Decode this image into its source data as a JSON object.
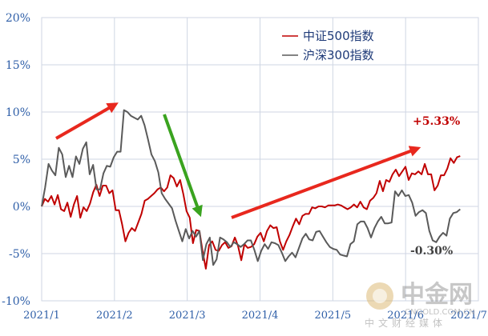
{
  "chart_data": {
    "type": "line",
    "ylim": [
      -10,
      20
    ],
    "y_ticks": [
      "20%",
      "15%",
      "10%",
      "5%",
      "0%",
      "-5%",
      "-10%"
    ],
    "y_tick_values": [
      20,
      15,
      10,
      5,
      0,
      -5,
      -10
    ],
    "x_ticks": [
      "2021/1",
      "2021/2",
      "2021/3",
      "2021/4",
      "2021/5",
      "2021/6",
      "2021/7"
    ],
    "grid": true,
    "legend_position": "top-right",
    "series": [
      {
        "name": "中证500指数",
        "color": "#c00000",
        "values": [
          0.0,
          0.8,
          0.5,
          1.1,
          0.2,
          1.2,
          -0.3,
          -0.5,
          0.4,
          -1.1,
          0.2,
          1.1,
          -1.2,
          -0.1,
          -0.5,
          0.3,
          1.5,
          2.3,
          1.1,
          2.2,
          2.2,
          1.4,
          1.7,
          -0.4,
          -0.4,
          -1.9,
          -3.7,
          -2.8,
          -2.3,
          -2.6,
          -1.7,
          -0.8,
          0.6,
          0.8,
          1.1,
          1.4,
          1.8,
          2.0,
          1.6,
          2.0,
          3.3,
          3.0,
          2.1,
          2.8,
          1.3,
          -0.5,
          -1.2,
          -3.9,
          -2.5,
          -2.6,
          -4.8,
          -6.6,
          -4.1,
          -3.7,
          -4.6,
          -4.7,
          -4.1,
          -3.8,
          -4.4,
          -4.2,
          -3.3,
          -4.2,
          -5.7,
          -4.0,
          -4.4,
          -4.3,
          -4.0,
          -3.2,
          -2.8,
          -3.7,
          -2.6,
          -2.0,
          -2.3,
          -2.2,
          -3.7,
          -4.6,
          -3.7,
          -3.0,
          -2.1,
          -1.3,
          -1.9,
          -1.0,
          -0.8,
          -0.8,
          -0.1,
          -0.2,
          0.0,
          0.0,
          -0.1,
          0.1,
          0.1,
          0.1,
          0.2,
          0.1,
          -0.1,
          -0.3,
          -0.1,
          0.2,
          -0.1,
          0.5,
          -0.1,
          -0.3,
          0.6,
          0.9,
          1.4,
          2.7,
          1.6,
          2.8,
          2.6,
          3.4,
          3.9,
          3.2,
          3.7,
          4.2,
          2.8,
          3.5,
          3.4,
          3.7,
          3.4,
          4.5,
          3.4,
          3.4,
          1.7,
          2.2,
          3.3,
          3.3,
          4.0,
          5.1,
          4.6,
          5.2,
          5.33
        ]
      },
      {
        "name": "沪深300指数",
        "color": "#5a5a5a",
        "values": [
          0.0,
          2.0,
          4.5,
          3.8,
          3.3,
          6.2,
          5.5,
          3.1,
          4.3,
          3.1,
          5.3,
          4.5,
          6.1,
          6.8,
          3.4,
          4.4,
          1.8,
          1.8,
          3.5,
          4.3,
          4.2,
          5.2,
          5.8,
          5.8,
          10.2,
          10.0,
          9.6,
          9.4,
          9.2,
          9.6,
          8.6,
          7.1,
          5.5,
          4.8,
          3.6,
          1.4,
          0.8,
          0.3,
          -0.2,
          -1.5,
          -2.6,
          -3.7,
          -2.4,
          -3.4,
          -2.6,
          -3.2,
          -2.6,
          -5.7,
          -4.0,
          -3.3,
          -6.2,
          -5.6,
          -3.3,
          -3.5,
          -3.8,
          -4.3,
          -3.8,
          -4.0,
          -4.3,
          -4.0,
          -3.6,
          -3.6,
          -4.6,
          -5.8,
          -4.7,
          -4.0,
          -4.5,
          -3.8,
          -3.9,
          -4.1,
          -4.9,
          -5.8,
          -5.3,
          -4.9,
          -5.4,
          -4.4,
          -3.4,
          -2.9,
          -3.5,
          -3.6,
          -2.7,
          -2.6,
          -3.2,
          -3.8,
          -4.3,
          -4.5,
          -4.6,
          -5.1,
          -5.2,
          -5.3,
          -4.0,
          -3.7,
          -1.9,
          -1.6,
          -1.6,
          -2.3,
          -3.3,
          -2.3,
          -1.6,
          -1.1,
          -1.8,
          -1.8,
          -1.7,
          1.6,
          1.1,
          1.7,
          1.1,
          1.2,
          0.4,
          -1.0,
          -0.6,
          -0.4,
          -0.7,
          -2.6,
          -3.6,
          -3.8,
          -3.2,
          -2.8,
          -3.1,
          -1.3,
          -0.7,
          -0.6,
          -0.3
        ]
      }
    ],
    "annotations": [
      {
        "text": "+5.33%",
        "color": "#c00000"
      },
      {
        "text": "-0.30%",
        "color": "#404040"
      }
    ]
  },
  "watermark": {
    "brand": "中金网",
    "domain": "CNGOLD.COM.CN",
    "slogan": "中文财经媒体"
  },
  "arrow_colors": {
    "red": "#e8281e",
    "green": "#3aa31f"
  }
}
